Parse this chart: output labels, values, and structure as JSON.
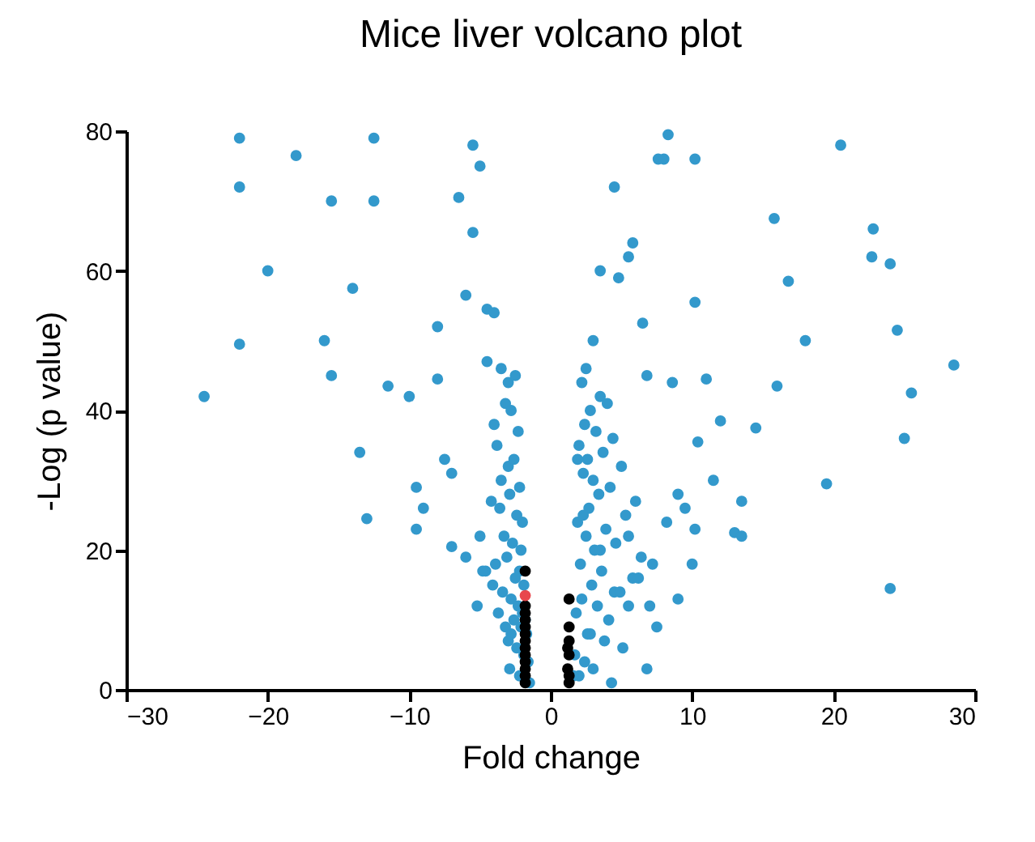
{
  "chart_data": {
    "type": "scatter",
    "title": "Mice liver volcano plot",
    "xlabel": "Fold change",
    "ylabel": "-Log (p value)",
    "xlim": [
      -30,
      30
    ],
    "xticks": [
      -30,
      -20,
      -10,
      0,
      10,
      20,
      30
    ],
    "ylim": [
      0,
      80
    ],
    "yticks": [
      0,
      20,
      40,
      60,
      80
    ],
    "grid": false,
    "marker": "circle",
    "series": [
      {
        "color": "#3399cc",
        "x": [
          -22,
          -22,
          -18,
          -15.5,
          -12.5,
          -12.5,
          -20,
          -24.5,
          -22,
          -16,
          -15.5,
          -14,
          -13.5,
          -13,
          -11.5,
          -9.5,
          -9,
          -8,
          -7.5,
          -6.5,
          -6,
          -5.5,
          -5,
          -5.5,
          -4.5,
          -4,
          -8,
          -7,
          -9.5,
          -7,
          -5,
          -6,
          -10,
          -4.5,
          -3.5,
          -3,
          -3.2,
          -2.5,
          -4,
          -3.8,
          -2.8,
          -2.3,
          -3,
          -3.5,
          -2.6,
          -2.2,
          -4.2,
          -3.6,
          -2.9,
          -2.4,
          -2,
          -3.3,
          -2.7,
          -2.1,
          -4.6,
          -3.9,
          -3.1,
          -2.5,
          -2.2,
          -1.9,
          -3.4,
          -2.8,
          -2.3,
          -2,
          -1.8,
          -2.6,
          -2.1,
          -1.7,
          -3,
          -2.4,
          -1.9,
          -1.6,
          -2.9,
          -2.2,
          -1.5,
          -4.1,
          -5.2,
          -4.8,
          -3.7,
          -3.2,
          -2.8,
          7.6,
          8,
          10.2,
          8.3,
          4.5,
          20.5,
          15.8,
          22.8,
          22.7,
          24,
          5.8,
          5.5,
          3.5,
          4.8,
          16.8,
          6.5,
          10.2,
          28.5,
          18,
          25.5,
          24.5,
          25,
          19.5,
          24,
          12,
          11,
          8.6,
          13.5,
          14.5,
          9.5,
          6.8,
          10.4,
          11.5,
          13,
          13.5,
          10.2,
          7,
          5.5,
          4.5,
          9,
          10,
          16,
          2.5,
          3,
          2.2,
          3.5,
          2.8,
          4,
          2.4,
          3.2,
          2,
          4.4,
          3.7,
          2.6,
          5,
          3,
          2.3,
          4.2,
          3.4,
          6,
          2.7,
          5.3,
          1.9,
          3.9,
          2.5,
          4.6,
          3.1,
          6.4,
          2.1,
          3.6,
          5.8,
          2.9,
          4.9,
          2.2,
          3.3,
          1.8,
          4.1,
          7.5,
          2.6,
          3.8,
          5.1,
          1.7,
          2.4,
          6.8,
          3,
          2,
          4.3,
          1.6,
          2.8,
          3.5,
          2.3,
          1.9,
          5.5,
          8.2,
          7.2,
          6.2,
          9
        ],
        "values": [
          79,
          72,
          76.5,
          70,
          79,
          70,
          60,
          42,
          49.5,
          50,
          45,
          57.5,
          34,
          24.5,
          43.5,
          23,
          26,
          52,
          33,
          70.5,
          56.5,
          78,
          75,
          65.5,
          54.5,
          54,
          44.5,
          31,
          29,
          20.5,
          22,
          19,
          42,
          47,
          46,
          44,
          41,
          45,
          38,
          35,
          40,
          37,
          32,
          30,
          33,
          29,
          27,
          26,
          28,
          25,
          24,
          22,
          21,
          20,
          17,
          18,
          19,
          16,
          17,
          15,
          14,
          13,
          12,
          11,
          10,
          10,
          9,
          8,
          7,
          6,
          5,
          4,
          3,
          2,
          1,
          15,
          12,
          17,
          11,
          9,
          8,
          76,
          76,
          76,
          79.5,
          72,
          78,
          67.5,
          66,
          62,
          61,
          64,
          62,
          60,
          59,
          58.5,
          52.5,
          55.5,
          46.5,
          50,
          42.5,
          51.5,
          36,
          29.5,
          14.5,
          38.5,
          44.5,
          44,
          27,
          37.5,
          26,
          45,
          35.5,
          30,
          22.5,
          22,
          23,
          12,
          12,
          14,
          13,
          18,
          43.5,
          46,
          50,
          44,
          42,
          40,
          41,
          38,
          37,
          35,
          36,
          34,
          33,
          32,
          30,
          31,
          29,
          28,
          27,
          26,
          25,
          24,
          23,
          22,
          21,
          20,
          19,
          18,
          17,
          16,
          15,
          14,
          13,
          12,
          11,
          10,
          9,
          8,
          7,
          6,
          5,
          4,
          3,
          3,
          2,
          1,
          2,
          8,
          20,
          25,
          33,
          22,
          24,
          18,
          16,
          28
        ]
      },
      {
        "color": "#000000",
        "x": [
          -1.8,
          -1.8,
          -1.8,
          -1.8,
          -1.8,
          -1.8,
          -1.8,
          -1.8,
          -1.8,
          -1.8,
          -1.8,
          -1.8,
          -1.8,
          1.3,
          1.3,
          1.3,
          1.2,
          1.3,
          1.2,
          1.3,
          1.3
        ],
        "values": [
          17,
          12,
          11,
          10,
          9,
          8,
          7,
          6,
          5,
          4,
          3,
          2,
          1,
          13,
          9,
          7,
          6,
          5,
          3,
          2,
          1
        ]
      },
      {
        "color": "#e8474c",
        "x": [
          -1.8
        ],
        "values": [
          13.5
        ]
      }
    ]
  }
}
